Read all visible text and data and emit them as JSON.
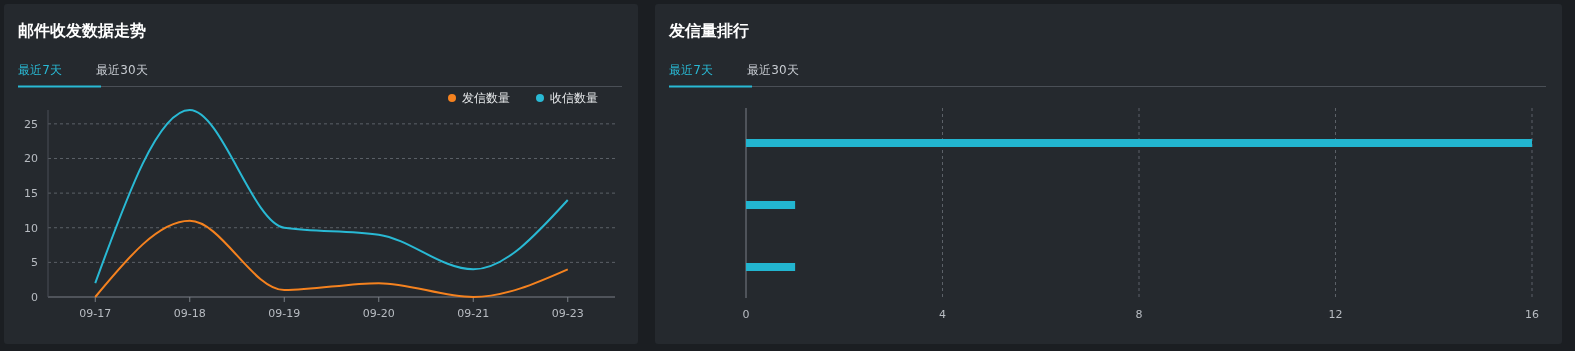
{
  "chart_data": [
    {
      "type": "line",
      "title": "邮件收发数据走势",
      "annotations": [
        "最近7天",
        "最近30天"
      ],
      "categories": [
        "09-17",
        "09-18",
        "09-19",
        "09-20",
        "09-21",
        "09-23"
      ],
      "series": [
        {
          "name": "发信数量",
          "color": "#f5821f",
          "values": [
            0,
            11,
            1,
            2,
            0,
            4
          ]
        },
        {
          "name": "收信数量",
          "color": "#29b9d4",
          "values": [
            2,
            27,
            10,
            9,
            4,
            14
          ]
        }
      ],
      "ylim": [
        0,
        27
      ],
      "yticks": [
        0,
        5,
        10,
        15,
        20,
        25
      ],
      "grid": "y",
      "legend": "top right"
    },
    {
      "type": "bar",
      "title": "发信量排行",
      "annotations": [
        "最近7天",
        "最近30天"
      ],
      "orientation": "horizontal",
      "categories": [
        null,
        null,
        null
      ],
      "values": [
        16,
        1,
        1
      ],
      "color": "#22b5d0",
      "xlim": [
        0,
        16
      ],
      "xticks": [
        0,
        4,
        8,
        12,
        16
      ],
      "grid": "x"
    }
  ]
}
